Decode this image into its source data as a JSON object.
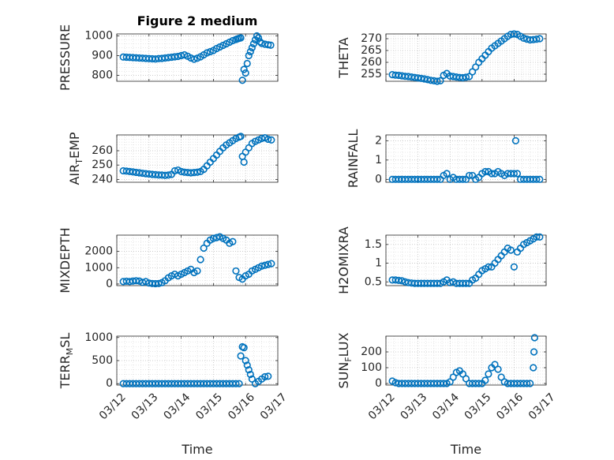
{
  "figure_title": "Figure 2 medium",
  "chart_data": [
    {
      "type": "scatter",
      "ylabel": "PRESSURE",
      "title": "Figure 2 medium",
      "ylim": [
        770,
        1010
      ],
      "yticks": [
        800,
        900,
        1000
      ],
      "ytick_labels": [
        "800",
        "900",
        "1000"
      ],
      "xlim": [
        "03/12",
        "03/17"
      ],
      "xticks": [
        "03/12",
        "03/13",
        "03/14",
        "03/15",
        "03/16",
        "03/17"
      ],
      "show_xtick_labels": false,
      "x": [
        0.2,
        0.3,
        0.4,
        0.5,
        0.6,
        0.7,
        0.8,
        0.9,
        1.0,
        1.1,
        1.2,
        1.3,
        1.4,
        1.5,
        1.6,
        1.7,
        1.8,
        1.9,
        2.0,
        2.1,
        2.2,
        2.3,
        2.4,
        2.5,
        2.6,
        2.7,
        2.8,
        2.9,
        3.0,
        3.1,
        3.2,
        3.3,
        3.4,
        3.5,
        3.6,
        3.7,
        3.75,
        3.8,
        3.85,
        3.9,
        3.95,
        4.0,
        4.05,
        4.1,
        4.15,
        4.2,
        4.25,
        4.3,
        4.35,
        4.4,
        4.45,
        4.5,
        4.6,
        4.7,
        4.78
      ],
      "y": [
        893,
        892,
        891,
        890,
        889,
        888,
        887,
        886,
        885,
        884,
        883,
        885,
        886,
        888,
        890,
        892,
        894,
        896,
        900,
        904,
        897,
        888,
        882,
        887,
        894,
        904,
        914,
        920,
        926,
        936,
        944,
        952,
        960,
        968,
        976,
        982,
        985,
        988,
        990,
        775,
        830,
        812,
        860,
        900,
        920,
        940,
        960,
        980,
        1000,
        990,
        970,
        962,
        958,
        955,
        953
      ]
    },
    {
      "type": "scatter",
      "ylabel": "THETA",
      "ylim": [
        252,
        272
      ],
      "yticks": [
        255,
        260,
        265,
        270
      ],
      "ytick_labels": [
        "255",
        "260",
        "265",
        "270"
      ],
      "xlim": [
        "03/12",
        "03/17"
      ],
      "xticks": [
        "03/12",
        "03/13",
        "03/14",
        "03/15",
        "03/16",
        "03/17"
      ],
      "show_xtick_labels": false,
      "x": [
        0.2,
        0.3,
        0.4,
        0.5,
        0.6,
        0.7,
        0.8,
        0.9,
        1.0,
        1.1,
        1.2,
        1.3,
        1.4,
        1.5,
        1.6,
        1.7,
        1.8,
        1.9,
        2.0,
        2.1,
        2.2,
        2.3,
        2.4,
        2.5,
        2.6,
        2.7,
        2.8,
        2.9,
        3.0,
        3.1,
        3.2,
        3.3,
        3.4,
        3.5,
        3.6,
        3.7,
        3.8,
        3.9,
        4.0,
        4.1,
        4.2,
        4.3,
        4.4,
        4.5,
        4.6,
        4.7,
        4.8
      ],
      "y": [
        254.8,
        254.6,
        254.5,
        254.3,
        254.1,
        254.0,
        253.8,
        253.6,
        253.4,
        253.2,
        253.0,
        252.7,
        252.4,
        252.2,
        252.0,
        252.2,
        254.5,
        255.3,
        254.2,
        254.0,
        253.8,
        253.6,
        253.5,
        253.7,
        254.0,
        256.0,
        258.0,
        260.0,
        261.5,
        263.0,
        264.5,
        266.0,
        267.0,
        268.0,
        269.0,
        270.0,
        271.0,
        271.8,
        272.0,
        271.8,
        271.0,
        270.2,
        269.8,
        269.5,
        269.6,
        269.8,
        270.0
      ]
    },
    {
      "type": "scatter",
      "ylabel": "AIR_TEMP",
      "ylabel_parts": [
        "AIR",
        "T",
        "EMP"
      ],
      "ylim": [
        238,
        271
      ],
      "yticks": [
        240,
        250,
        260
      ],
      "ytick_labels": [
        "240",
        "250",
        "260"
      ],
      "xlim": [
        "03/12",
        "03/17"
      ],
      "xticks": [
        "03/12",
        "03/13",
        "03/14",
        "03/15",
        "03/16",
        "03/17"
      ],
      "show_xtick_labels": false,
      "x": [
        0.2,
        0.3,
        0.4,
        0.5,
        0.6,
        0.7,
        0.8,
        0.9,
        1.0,
        1.1,
        1.2,
        1.3,
        1.4,
        1.5,
        1.6,
        1.7,
        1.8,
        1.9,
        2.0,
        2.1,
        2.2,
        2.3,
        2.4,
        2.5,
        2.6,
        2.7,
        2.8,
        2.9,
        3.0,
        3.1,
        3.2,
        3.3,
        3.4,
        3.5,
        3.6,
        3.7,
        3.8,
        3.85,
        3.9,
        3.95,
        4.0,
        4.1,
        4.2,
        4.3,
        4.4,
        4.5,
        4.6,
        4.7,
        4.8
      ],
      "y": [
        246.0,
        245.8,
        245.5,
        245.2,
        244.9,
        244.6,
        244.3,
        244.0,
        243.8,
        243.5,
        243.3,
        243.1,
        243.0,
        242.8,
        243.0,
        243.5,
        246.0,
        246.5,
        245.5,
        245.0,
        244.8,
        244.6,
        244.8,
        245.0,
        245.5,
        247.0,
        249.5,
        252.0,
        254.5,
        257.0,
        259.5,
        262.0,
        264.0,
        265.5,
        267.0,
        268.5,
        269.5,
        270.0,
        256.0,
        252.0,
        259.0,
        262.0,
        265.0,
        266.5,
        267.5,
        268.5,
        269.0,
        268.0,
        267.5
      ]
    },
    {
      "type": "scatter",
      "ylabel": "RAINFALL",
      "ylim": [
        -0.15,
        2.3
      ],
      "yticks": [
        0,
        1,
        2
      ],
      "ytick_labels": [
        "0",
        "1",
        "2"
      ],
      "xlim": [
        "03/12",
        "03/17"
      ],
      "xticks": [
        "03/12",
        "03/13",
        "03/14",
        "03/15",
        "03/16",
        "03/17"
      ],
      "show_xtick_labels": false,
      "x": [
        0.2,
        0.3,
        0.4,
        0.5,
        0.6,
        0.7,
        0.8,
        0.9,
        1.0,
        1.1,
        1.2,
        1.3,
        1.4,
        1.5,
        1.6,
        1.7,
        1.8,
        1.9,
        2.0,
        2.1,
        2.2,
        2.3,
        2.4,
        2.5,
        2.6,
        2.7,
        2.8,
        2.9,
        3.0,
        3.1,
        3.2,
        3.3,
        3.4,
        3.5,
        3.6,
        3.7,
        3.8,
        3.9,
        4.0,
        4.05,
        4.1,
        4.2,
        4.3,
        4.4,
        4.5,
        4.6,
        4.7,
        4.8
      ],
      "y": [
        0,
        0,
        0,
        0,
        0,
        0,
        0,
        0,
        0,
        0,
        0,
        0,
        0,
        0,
        0,
        0,
        0.2,
        0.3,
        0,
        0.1,
        0,
        0,
        0,
        0,
        0.2,
        0.2,
        0,
        0.1,
        0.3,
        0.4,
        0.4,
        0.3,
        0.3,
        0.4,
        0.3,
        0.2,
        0.3,
        0.3,
        0.3,
        2.0,
        0.3,
        0,
        0,
        0,
        0,
        0,
        0,
        0
      ]
    },
    {
      "type": "scatter",
      "ylabel": "MIXDEPTH",
      "ylim": [
        -100,
        3000
      ],
      "yticks": [
        0,
        1000,
        2000
      ],
      "ytick_labels": [
        "0",
        "1000",
        "2000"
      ],
      "xlim": [
        "03/12",
        "03/17"
      ],
      "xticks": [
        "03/12",
        "03/13",
        "03/14",
        "03/15",
        "03/16",
        "03/17"
      ],
      "show_xtick_labels": false,
      "x": [
        0.2,
        0.3,
        0.4,
        0.5,
        0.6,
        0.7,
        0.8,
        0.9,
        1.0,
        1.1,
        1.2,
        1.3,
        1.4,
        1.5,
        1.6,
        1.7,
        1.8,
        1.9,
        2.0,
        2.1,
        2.2,
        2.3,
        2.4,
        2.5,
        2.6,
        2.7,
        2.8,
        2.9,
        3.0,
        3.1,
        3.2,
        3.3,
        3.4,
        3.5,
        3.6,
        3.7,
        3.8,
        3.9,
        4.0,
        4.1,
        4.2,
        4.3,
        4.4,
        4.5,
        4.6,
        4.7,
        4.8
      ],
      "y": [
        150,
        170,
        150,
        180,
        200,
        180,
        100,
        150,
        60,
        30,
        20,
        30,
        80,
        200,
        380,
        500,
        600,
        500,
        600,
        700,
        800,
        900,
        700,
        800,
        1500,
        2200,
        2500,
        2700,
        2800,
        2850,
        2900,
        2800,
        2700,
        2500,
        2600,
        800,
        400,
        300,
        500,
        600,
        800,
        900,
        1000,
        1100,
        1150,
        1200,
        1250
      ]
    },
    {
      "type": "scatter",
      "ylabel": "H2OMIXRA",
      "ylim": [
        0.4,
        1.75
      ],
      "yticks": [
        0.5,
        1,
        1.5
      ],
      "ytick_labels": [
        "0.5",
        "1",
        "1.5"
      ],
      "xlim": [
        "03/12",
        "03/17"
      ],
      "xticks": [
        "03/12",
        "03/13",
        "03/14",
        "03/15",
        "03/16",
        "03/17"
      ],
      "show_xtick_labels": false,
      "x": [
        0.2,
        0.3,
        0.4,
        0.5,
        0.6,
        0.7,
        0.8,
        0.9,
        1.0,
        1.1,
        1.2,
        1.3,
        1.4,
        1.5,
        1.6,
        1.7,
        1.8,
        1.9,
        2.0,
        2.1,
        2.2,
        2.3,
        2.4,
        2.5,
        2.6,
        2.7,
        2.8,
        2.9,
        3.0,
        3.1,
        3.2,
        3.3,
        3.4,
        3.5,
        3.6,
        3.7,
        3.8,
        3.9,
        4.0,
        4.1,
        4.2,
        4.3,
        4.4,
        4.5,
        4.6,
        4.7,
        4.8
      ],
      "y": [
        0.55,
        0.55,
        0.54,
        0.53,
        0.5,
        0.48,
        0.47,
        0.46,
        0.46,
        0.46,
        0.46,
        0.46,
        0.46,
        0.46,
        0.46,
        0.46,
        0.5,
        0.55,
        0.48,
        0.5,
        0.46,
        0.46,
        0.46,
        0.46,
        0.46,
        0.55,
        0.6,
        0.7,
        0.8,
        0.85,
        0.9,
        0.9,
        1.0,
        1.1,
        1.2,
        1.3,
        1.4,
        1.35,
        0.9,
        1.3,
        1.4,
        1.5,
        1.55,
        1.6,
        1.65,
        1.7,
        1.7
      ]
    },
    {
      "type": "scatter",
      "ylabel": "TERR_MSL",
      "ylabel_parts": [
        "TERR",
        "M",
        "SL"
      ],
      "ylim": [
        -30,
        1030
      ],
      "yticks": [
        0,
        500,
        1000
      ],
      "ytick_labels": [
        "0",
        "500",
        "1000"
      ],
      "xlim": [
        "03/12",
        "03/17"
      ],
      "xticks": [
        "03/12",
        "03/13",
        "03/14",
        "03/15",
        "03/16",
        "03/17"
      ],
      "xtick_labels": [
        "03/12",
        "03/13",
        "03/14",
        "03/15",
        "03/16",
        "03/17"
      ],
      "show_xtick_labels": true,
      "xlabel": "Time",
      "x": [
        0.2,
        0.3,
        0.4,
        0.5,
        0.6,
        0.7,
        0.8,
        0.9,
        1.0,
        1.1,
        1.2,
        1.3,
        1.4,
        1.5,
        1.6,
        1.7,
        1.8,
        1.9,
        2.0,
        2.1,
        2.2,
        2.3,
        2.4,
        2.5,
        2.6,
        2.7,
        2.8,
        2.9,
        3.0,
        3.1,
        3.2,
        3.3,
        3.4,
        3.5,
        3.6,
        3.7,
        3.8,
        3.85,
        3.9,
        3.95,
        4.0,
        4.05,
        4.1,
        4.15,
        4.2,
        4.3,
        4.4,
        4.5,
        4.6,
        4.7
      ],
      "y": [
        0,
        0,
        0,
        0,
        0,
        0,
        0,
        0,
        0,
        0,
        0,
        0,
        0,
        0,
        0,
        0,
        0,
        0,
        0,
        0,
        0,
        0,
        0,
        0,
        0,
        0,
        0,
        0,
        0,
        0,
        0,
        0,
        0,
        0,
        0,
        0,
        0,
        600,
        800,
        780,
        500,
        400,
        300,
        200,
        100,
        0,
        50,
        100,
        150,
        160
      ]
    },
    {
      "type": "scatter",
      "ylabel": "SUN_FLUX",
      "ylabel_parts": [
        "SUN",
        "F",
        "LUX"
      ],
      "ylim": [
        -10,
        300
      ],
      "yticks": [
        0,
        100,
        200
      ],
      "ytick_labels": [
        "0",
        "100",
        "200"
      ],
      "xlim": [
        "03/12",
        "03/17"
      ],
      "xticks": [
        "03/12",
        "03/13",
        "03/14",
        "03/15",
        "03/16",
        "03/17"
      ],
      "xtick_labels": [
        "03/12",
        "03/13",
        "03/14",
        "03/15",
        "03/16",
        "03/17"
      ],
      "show_xtick_labels": true,
      "xlabel": "Time",
      "x": [
        0.2,
        0.3,
        0.4,
        0.5,
        0.6,
        0.7,
        0.8,
        0.9,
        1.0,
        1.1,
        1.2,
        1.3,
        1.4,
        1.5,
        1.6,
        1.7,
        1.8,
        1.9,
        2.0,
        2.1,
        2.2,
        2.3,
        2.4,
        2.5,
        2.6,
        2.7,
        2.8,
        2.9,
        3.0,
        3.1,
        3.2,
        3.3,
        3.4,
        3.5,
        3.6,
        3.7,
        3.8,
        3.9,
        4.0,
        4.1,
        4.2,
        4.3,
        4.4,
        4.5,
        4.6,
        4.62,
        4.64
      ],
      "y": [
        15,
        5,
        0,
        0,
        0,
        0,
        0,
        0,
        0,
        0,
        0,
        0,
        0,
        0,
        0,
        0,
        0,
        0,
        10,
        40,
        70,
        80,
        60,
        30,
        0,
        0,
        0,
        0,
        0,
        20,
        60,
        100,
        120,
        90,
        40,
        10,
        0,
        0,
        0,
        0,
        0,
        0,
        0,
        0,
        100,
        200,
        290
      ]
    }
  ]
}
